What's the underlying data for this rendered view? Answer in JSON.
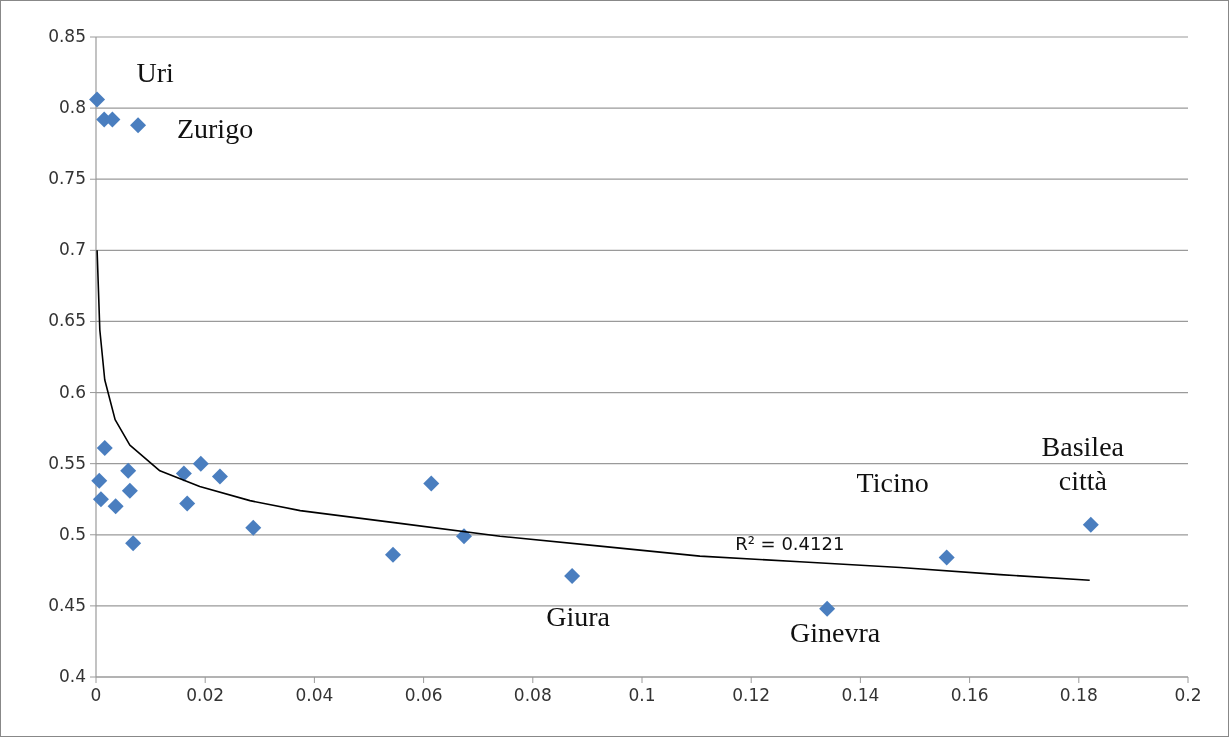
{
  "chart_data": {
    "type": "scatter",
    "grid": "y",
    "xlim": [
      0,
      0.2
    ],
    "ylim": [
      0.4,
      0.85
    ],
    "xticks": [
      0,
      0.02,
      0.04,
      0.06,
      0.08,
      0.1,
      0.12,
      0.14,
      0.16,
      0.18,
      0.2
    ],
    "yticks": [
      0.4,
      0.45,
      0.5,
      0.55,
      0.6,
      0.65,
      0.7,
      0.75,
      0.8,
      0.85
    ],
    "series": [
      {
        "marker": "diamond",
        "color": "#4a7ebf",
        "x": [
          0.0002,
          0.0015,
          0.003,
          0.0077,
          0.0016,
          0.0006,
          0.0059,
          0.0062,
          0.0009,
          0.0036,
          0.0068,
          0.0161,
          0.0192,
          0.0167,
          0.0227,
          0.0288,
          0.0614,
          0.0544,
          0.0674,
          0.0872,
          0.1339,
          0.1558,
          0.1822
        ],
        "values": [
          0.806,
          0.792,
          0.792,
          0.788,
          0.561,
          0.538,
          0.545,
          0.531,
          0.525,
          0.52,
          0.494,
          0.543,
          0.55,
          0.522,
          0.541,
          0.505,
          0.536,
          0.486,
          0.499,
          0.471,
          0.448,
          0.484,
          0.507
        ]
      },
      {
        "type": "line",
        "color": "#000000",
        "x": [
          0.0002,
          0.0007,
          0.0016,
          0.0035,
          0.0062,
          0.0117,
          0.019,
          0.0282,
          0.0374,
          0.0557,
          0.074,
          0.0923,
          0.1106,
          0.1289,
          0.1473,
          0.1656,
          0.182
        ],
        "values": [
          0.7,
          0.644,
          0.609,
          0.581,
          0.563,
          0.545,
          0.534,
          0.524,
          0.517,
          0.508,
          0.499,
          0.492,
          0.485,
          0.481,
          0.477,
          0.472,
          0.468
        ]
      }
    ],
    "annotations": [
      {
        "text": "Uri",
        "x": 0.0002,
        "y": 0.806
      },
      {
        "text": "Zurigo",
        "x": 0.0077,
        "y": 0.788
      },
      {
        "text": "Giura",
        "x": 0.0872,
        "y": 0.471
      },
      {
        "text": "Ginevra",
        "x": 0.1339,
        "y": 0.448
      },
      {
        "text": "Ticino",
        "x": 0.1558,
        "y": 0.484
      },
      {
        "text": "Basilea\ncittà",
        "x": 0.1822,
        "y": 0.507
      },
      {
        "text": "R² = 0.4121",
        "x": 0.1289,
        "y": 0.481
      }
    ]
  }
}
